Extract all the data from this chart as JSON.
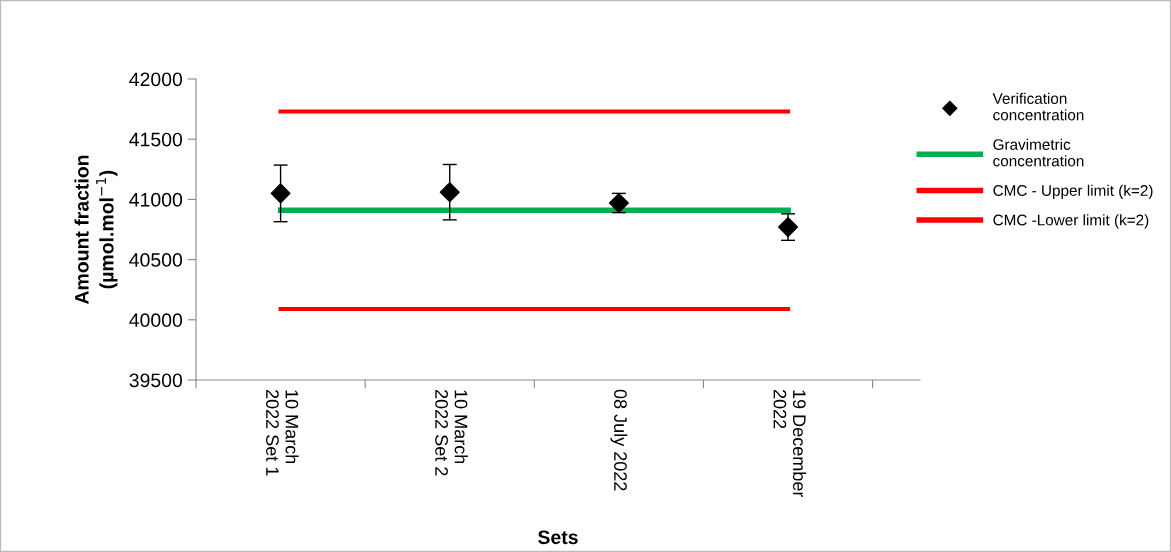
{
  "chart_data": {
    "type": "scatter",
    "xlabel": "Sets",
    "ylabel": "Amount fraction\n(µmol.mol$^{−1}$)",
    "categories": [
      "10 March 2022 Set 1",
      "10 March 2022 Set 2",
      "08 July 2022",
      "19 December 2022"
    ],
    "series": [
      {
        "name": "Verification concentration",
        "color": "#000000",
        "marker": "diamond",
        "values": [
          41050,
          41060,
          40970,
          40770
        ],
        "errors": [
          235,
          230,
          80,
          110
        ]
      },
      {
        "name": "Gravimetric concentration",
        "type": "line",
        "color": "#00b050",
        "values": [
          40910,
          40910,
          40910,
          40910
        ]
      },
      {
        "name": "CMC - Upper limit (k=2)",
        "type": "line",
        "color": "#ff0000",
        "values": [
          41730,
          41730,
          41730,
          41730
        ]
      },
      {
        "name": "CMC -Lower limit (k=2)",
        "type": "line",
        "color": "#ff0000",
        "values": [
          40090,
          40090,
          40090,
          40090
        ]
      }
    ],
    "ylim": [
      39500,
      42000
    ],
    "yticks": [
      39500,
      40000,
      40500,
      41000,
      41500,
      42000
    ],
    "grid": false,
    "legend": "right"
  }
}
